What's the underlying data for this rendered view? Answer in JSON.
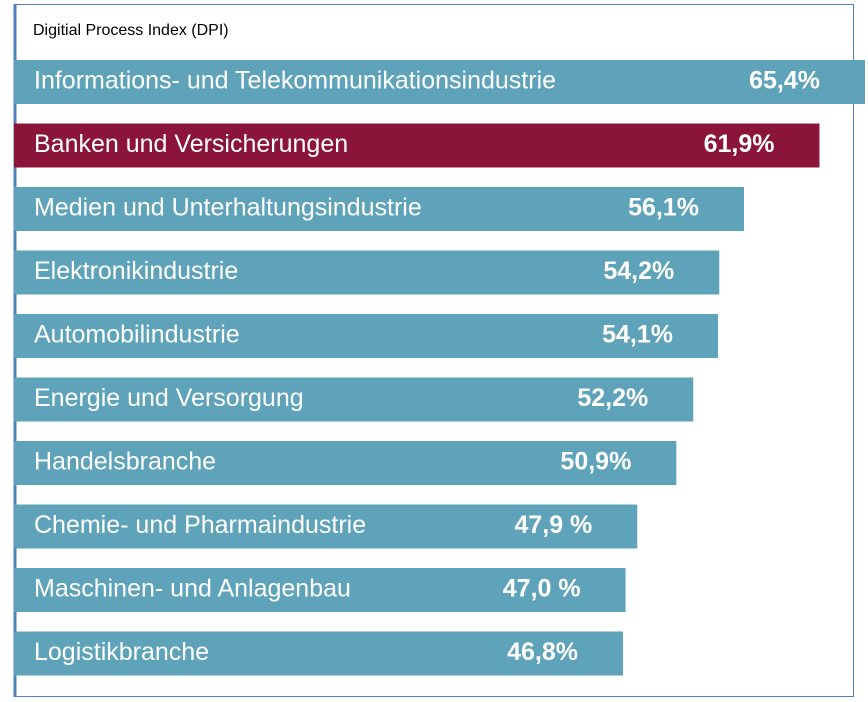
{
  "chart_data": {
    "type": "hbar",
    "title": "Digitial Process Index (DPI)",
    "categories": [
      "Informations- und Telekommunikationsindustrie",
      "Banken und Versicherungen",
      "Medien und Unterhaltungsindustrie",
      "Elektronikindustrie",
      "Automobilindustrie",
      "Energie und Versorgung",
      "Handelsbranche",
      "Chemie- und Pharmaindustrie",
      "Maschinen- und Anlagenbau",
      "Logistikbranche"
    ],
    "values": [
      65.4,
      61.9,
      56.1,
      54.2,
      54.1,
      52.2,
      50.9,
      47.9,
      47.0,
      46.8
    ],
    "value_labels": [
      "65,4%",
      "61,9%",
      "56,1%",
      "54,2%",
      "54,1%",
      "52,2%",
      "50,9%",
      "47,9 %",
      "47,0 %",
      "46,8%"
    ],
    "colors": [
      "#5fa3bb",
      "#8b1538",
      "#5fa3bb",
      "#5fa3bb",
      "#5fa3bb",
      "#5fa3bb",
      "#5fa3bb",
      "#5fa3bb",
      "#5fa3bb",
      "#5fa3bb"
    ]
  }
}
